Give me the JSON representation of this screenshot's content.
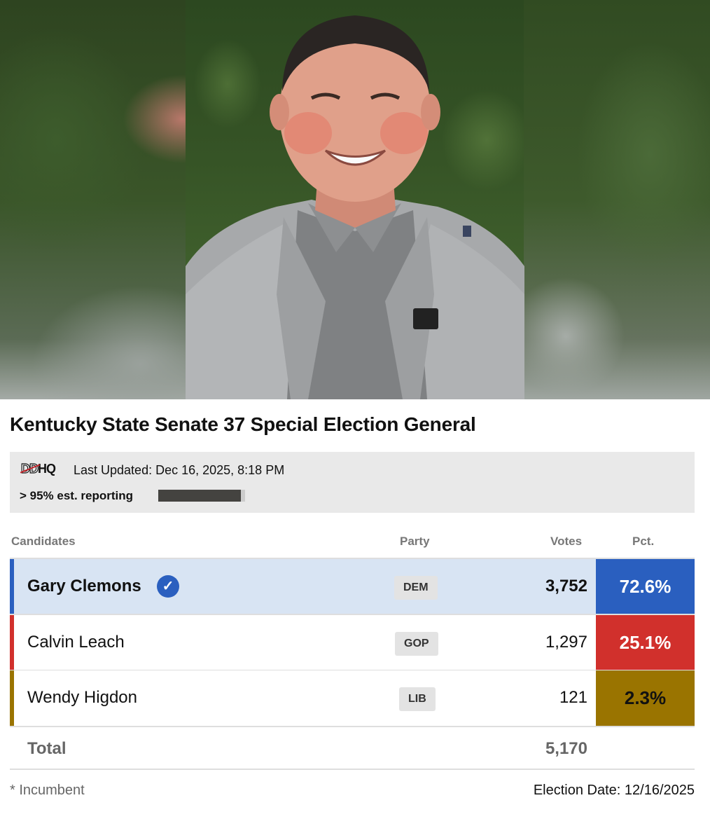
{
  "photo": {
    "description_icon": "candidate-photo"
  },
  "title": "Kentucky State Senate 37 Special Election General",
  "status": {
    "logo_dd": "DD",
    "logo_hq": "HQ",
    "last_updated": "Last Updated: Dec 16, 2025, 8:18 PM",
    "reporting": "> 95% est. reporting",
    "reporting_fraction": 0.95
  },
  "columns": {
    "candidates": "Candidates",
    "party": "Party",
    "votes": "Votes",
    "pct": "Pct."
  },
  "candidates": [
    {
      "name": "Gary Clemons",
      "party": "DEM",
      "votes": "3,752",
      "pct": "72.6%",
      "winner": true,
      "stripe_color": "#2a5fbf",
      "pct_color": "#2a5fbf",
      "row_bg": "#d8e4f3",
      "pct_text_color": "#ffffff"
    },
    {
      "name": "Calvin Leach",
      "party": "GOP",
      "votes": "1,297",
      "pct": "25.1%",
      "winner": false,
      "stripe_color": "#d1302c",
      "pct_color": "#d1302c",
      "row_bg": "#ffffff",
      "pct_text_color": "#ffffff"
    },
    {
      "name": "Wendy Higdon",
      "party": "LIB",
      "votes": "121",
      "pct": "2.3%",
      "winner": false,
      "stripe_color": "#9a7400",
      "pct_color": "#9a7400",
      "row_bg": "#ffffff",
      "pct_text_color": "#111111"
    }
  ],
  "total": {
    "label": "Total",
    "votes": "5,170"
  },
  "footer": {
    "incumbent_note": "* Incumbent",
    "election_date": "Election Date: 12/16/2025"
  },
  "icons": {
    "winner": "check-circle-icon"
  }
}
